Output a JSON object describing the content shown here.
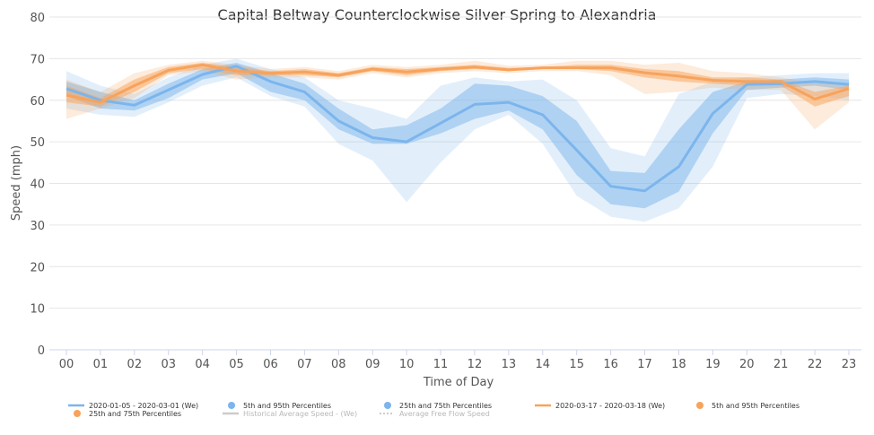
{
  "chart_data": {
    "type": "line",
    "title": "Capital Beltway Counterclockwise Silver Spring to Alexandria",
    "xlabel": "Time of Day",
    "ylabel": "Speed (mph)",
    "ylim": [
      0,
      80
    ],
    "yticks": [
      0,
      10,
      20,
      30,
      40,
      50,
      60,
      70,
      80
    ],
    "categories": [
      "00",
      "01",
      "02",
      "03",
      "04",
      "05",
      "06",
      "07",
      "08",
      "09",
      "10",
      "11",
      "12",
      "13",
      "14",
      "15",
      "16",
      "17",
      "18",
      "19",
      "20",
      "21",
      "22",
      "23"
    ],
    "grid": "horizontal",
    "legend_position": "bottom",
    "series": [
      {
        "name": "2020-01-05 - 2020-03-01 (We)",
        "color": "#7cb5ec",
        "values": [
          62.8,
          60.0,
          58.8,
          62.5,
          66.2,
          68.2,
          64.5,
          62.0,
          55.0,
          51.0,
          50.0,
          54.5,
          59.0,
          59.5,
          56.5,
          48.0,
          39.3,
          38.2,
          44.0,
          56.8,
          63.8,
          64.0,
          64.5,
          63.8
        ],
        "p25": [
          61.0,
          58.0,
          57.5,
          60.5,
          65.0,
          66.5,
          62.0,
          60.0,
          53.0,
          49.5,
          49.5,
          52.0,
          55.5,
          57.5,
          53.0,
          42.0,
          35.0,
          34.0,
          38.0,
          52.0,
          62.5,
          63.0,
          63.5,
          62.5
        ],
        "p75": [
          64.5,
          62.0,
          60.0,
          64.0,
          67.5,
          69.0,
          66.5,
          64.0,
          58.0,
          53.0,
          54.0,
          58.0,
          64.0,
          63.5,
          61.0,
          55.0,
          43.0,
          42.5,
          53.0,
          62.0,
          64.5,
          65.0,
          65.5,
          65.0
        ],
        "p5": [
          58.0,
          56.5,
          56.0,
          59.5,
          63.5,
          65.5,
          61.0,
          58.5,
          49.5,
          45.5,
          35.5,
          45.0,
          53.0,
          56.5,
          49.5,
          37.0,
          32.0,
          30.8,
          34.0,
          44.0,
          60.5,
          61.5,
          61.0,
          60.0
        ],
        "p95": [
          67.0,
          63.5,
          61.5,
          65.5,
          68.5,
          70.0,
          67.5,
          65.5,
          60.0,
          58.0,
          55.5,
          63.5,
          65.5,
          64.5,
          65.0,
          60.0,
          48.5,
          46.5,
          61.5,
          64.5,
          65.5,
          66.0,
          66.5,
          66.5
        ]
      },
      {
        "name": "2020-03-17 - 2020-03-18 (We)",
        "color": "#f7a35c",
        "values": [
          61.2,
          59.5,
          63.5,
          67.2,
          68.5,
          67.0,
          66.5,
          66.8,
          66.0,
          67.5,
          66.8,
          67.5,
          68.0,
          67.3,
          67.8,
          67.8,
          67.8,
          66.6,
          65.8,
          64.8,
          64.5,
          64.5,
          60.3,
          62.8
        ],
        "p25": [
          59.5,
          58.5,
          62.0,
          66.5,
          67.5,
          66.0,
          66.0,
          66.0,
          65.5,
          67.0,
          66.0,
          67.0,
          67.5,
          67.0,
          67.5,
          67.5,
          67.0,
          65.5,
          64.5,
          64.0,
          63.5,
          63.5,
          58.5,
          61.0
        ],
        "p75": [
          63.5,
          60.5,
          65.0,
          68.0,
          69.0,
          68.0,
          67.0,
          67.5,
          66.5,
          68.0,
          67.5,
          68.0,
          68.5,
          67.8,
          68.0,
          68.5,
          68.5,
          67.5,
          67.0,
          65.5,
          65.5,
          65.0,
          62.0,
          63.5
        ],
        "p5": [
          55.5,
          58.0,
          60.5,
          66.0,
          67.0,
          65.0,
          65.5,
          65.5,
          65.0,
          66.5,
          65.5,
          66.5,
          67.0,
          66.5,
          67.0,
          67.0,
          66.0,
          61.5,
          62.0,
          63.0,
          62.5,
          62.5,
          53.0,
          59.5
        ],
        "p95": [
          65.0,
          62.0,
          66.5,
          68.5,
          69.5,
          68.5,
          67.5,
          68.0,
          67.0,
          68.5,
          68.0,
          68.5,
          69.5,
          68.3,
          68.5,
          69.5,
          69.5,
          68.5,
          69.0,
          67.0,
          66.5,
          65.5,
          64.0,
          64.0
        ]
      }
    ],
    "legend": [
      {
        "label": "2020-01-05 - 2020-03-01 (We)",
        "symbol": "line",
        "color": "#7cb5ec"
      },
      {
        "label": "5th and 95th Percentiles",
        "symbol": "dot",
        "color": "#7cb5ec"
      },
      {
        "label": "25th and 75th Percentiles",
        "symbol": "dot",
        "color": "#7cb5ec"
      },
      {
        "label": "2020-03-17 - 2020-03-18 (We)",
        "symbol": "line",
        "color": "#f7a35c"
      },
      {
        "label": "5th and 95th Percentiles",
        "symbol": "dot",
        "color": "#f7a35c"
      },
      {
        "label": "25th and 75th Percentiles",
        "symbol": "dot",
        "color": "#f7a35c"
      },
      {
        "label": "Historical Average Speed - (We)",
        "symbol": "line",
        "color": "#cccccc",
        "muted": true
      },
      {
        "label": "Average Free Flow Speed",
        "symbol": "dotted-line",
        "color": "#cccccc",
        "muted": true
      }
    ]
  }
}
